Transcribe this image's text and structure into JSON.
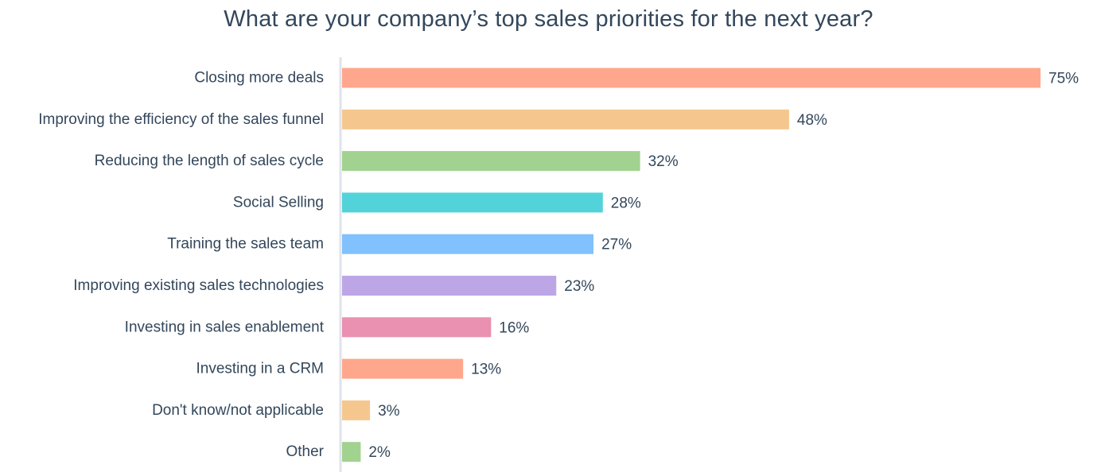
{
  "chart_data": {
    "type": "bar",
    "orientation": "horizontal",
    "title": "What are your company’s top sales priorities for the next year?",
    "xlabel": "",
    "ylabel": "",
    "unit": "%",
    "xlim": [
      0,
      75
    ],
    "grid": false,
    "categories": [
      "Closing more deals",
      "Improving the efficiency of the sales funnel",
      "Reducing the length of sales cycle",
      "Social Selling",
      "Training the sales team",
      "Improving existing sales technologies",
      "Investing in sales enablement",
      "Investing in a CRM",
      "Don't know/not applicable",
      "Other"
    ],
    "values": [
      75,
      48,
      32,
      28,
      27,
      23,
      16,
      13,
      3,
      2
    ],
    "value_labels": [
      "75%",
      "48%",
      "32%",
      "28%",
      "27%",
      "23%",
      "16%",
      "13%",
      "3%",
      "2%"
    ],
    "colors": [
      "#ffa78c",
      "#f5c78e",
      "#a2d28f",
      "#51d3d9",
      "#81c1fd",
      "#bda6e6",
      "#ea90b1",
      "#ffa78c",
      "#f5c78e",
      "#a2d28f"
    ],
    "axis_color": "#dfe3eb",
    "text_color": "#33475b"
  }
}
